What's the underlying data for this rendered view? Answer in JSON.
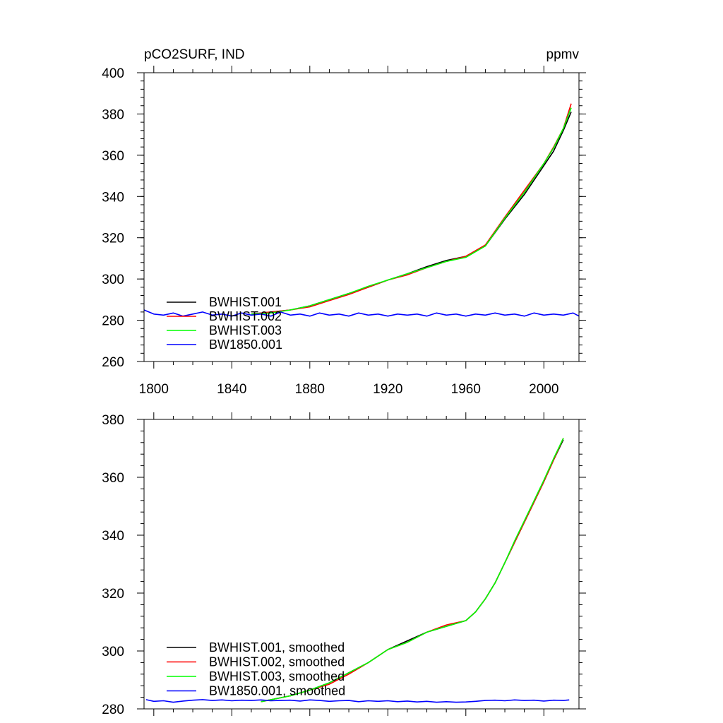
{
  "chart_data": [
    {
      "type": "line",
      "title_left": "pCO2SURF, IND",
      "title_right": "ppmv",
      "xlim": [
        1795,
        2018
      ],
      "ylim": [
        260,
        400
      ],
      "x_ticks": [
        1800,
        1840,
        1880,
        1920,
        1960,
        2000
      ],
      "x_tick_labels": [
        "1800",
        "1840",
        "1880",
        "1920",
        "1960",
        "2000"
      ],
      "y_ticks": [
        260,
        280,
        300,
        320,
        340,
        360,
        380,
        400
      ],
      "y_tick_labels": [
        "260",
        "280",
        "300",
        "320",
        "340",
        "360",
        "380",
        "400"
      ],
      "grid": false,
      "legend_position": "bottom-left",
      "series": [
        {
          "name": "BWHIST.001",
          "color": "#000000",
          "x": [
            1850,
            1860,
            1870,
            1880,
            1890,
            1900,
            1910,
            1920,
            1930,
            1940,
            1950,
            1960,
            1970,
            1980,
            1990,
            2000,
            2005,
            2010,
            2014
          ],
          "y": [
            283,
            284,
            285,
            287,
            290,
            293,
            296,
            299.5,
            302.5,
            306,
            309,
            311,
            316,
            329,
            341,
            355,
            362,
            372,
            381
          ]
        },
        {
          "name": "BWHIST.002",
          "color": "#ff0000",
          "x": [
            1850,
            1860,
            1870,
            1880,
            1890,
            1900,
            1910,
            1920,
            1930,
            1940,
            1950,
            1960,
            1970,
            1980,
            1990,
            2000,
            2005,
            2010,
            2014
          ],
          "y": [
            283,
            284,
            285,
            286.5,
            289.5,
            292.5,
            296,
            299.5,
            302,
            305.5,
            308.5,
            311,
            316.5,
            330,
            343,
            356,
            364,
            373,
            385
          ]
        },
        {
          "name": "BWHIST.003",
          "color": "#00ff00",
          "x": [
            1850,
            1860,
            1870,
            1880,
            1890,
            1900,
            1910,
            1920,
            1930,
            1940,
            1950,
            1960,
            1970,
            1980,
            1990,
            2000,
            2005,
            2010,
            2014
          ],
          "y": [
            283,
            283.5,
            285,
            287,
            290,
            293,
            296.5,
            299.5,
            302.5,
            305.5,
            308.5,
            310.5,
            316,
            329.5,
            342,
            356,
            363.5,
            373,
            383
          ]
        },
        {
          "name": "BW1850.001",
          "color": "#0000ff",
          "x": [
            1795,
            1800,
            1805,
            1810,
            1815,
            1820,
            1825,
            1830,
            1835,
            1840,
            1845,
            1850,
            1855,
            1860,
            1865,
            1870,
            1875,
            1880,
            1885,
            1890,
            1895,
            1900,
            1905,
            1910,
            1915,
            1920,
            1925,
            1930,
            1935,
            1940,
            1945,
            1950,
            1955,
            1960,
            1965,
            1970,
            1975,
            1980,
            1985,
            1990,
            1995,
            2000,
            2005,
            2010,
            2015,
            2018
          ],
          "y": [
            285,
            283,
            282.5,
            283.5,
            282,
            283,
            284,
            282.5,
            283,
            282,
            283.5,
            282.5,
            283,
            282,
            284,
            282.5,
            283,
            282,
            283.5,
            282.5,
            283,
            282,
            283.5,
            282.5,
            283,
            282,
            283,
            282.5,
            283,
            282,
            283.5,
            282.5,
            283,
            282,
            283,
            282.5,
            283.5,
            282.5,
            283,
            282,
            283.5,
            282.5,
            283,
            282.5,
            283.5,
            282
          ]
        }
      ]
    },
    {
      "type": "line",
      "xlim": [
        1795,
        2018
      ],
      "ylim": [
        280,
        380
      ],
      "y_ticks": [
        280,
        300,
        320,
        340,
        360,
        380
      ],
      "y_tick_labels": [
        "280",
        "300",
        "320",
        "340",
        "360",
        "380"
      ],
      "grid": false,
      "legend_position": "bottom-left",
      "series": [
        {
          "name": "BWHIST.001, smoothed",
          "color": "#000000",
          "x": [
            1855,
            1870,
            1880,
            1890,
            1900,
            1910,
            1920,
            1930,
            1940,
            1950,
            1960,
            1965,
            1970,
            1975,
            1980,
            1985,
            1990,
            1995,
            2000,
            2005,
            2010
          ],
          "y": [
            282.5,
            284.5,
            286.5,
            289,
            292.5,
            296,
            300.5,
            303.5,
            306.5,
            308.5,
            310.5,
            313.5,
            318,
            323.5,
            330.5,
            337.5,
            344.5,
            351.5,
            358.5,
            366,
            373
          ]
        },
        {
          "name": "BWHIST.002, smoothed",
          "color": "#ff0000",
          "x": [
            1855,
            1870,
            1880,
            1890,
            1900,
            1910,
            1920,
            1930,
            1940,
            1950,
            1960,
            1965,
            1970,
            1975,
            1980,
            1985,
            1990,
            1995,
            2000,
            2005,
            2010
          ],
          "y": [
            282.5,
            284.5,
            286.5,
            288.5,
            292,
            296,
            300.5,
            303,
            306.5,
            309,
            310.5,
            313.5,
            318,
            323.5,
            330.5,
            337.5,
            344.5,
            351.5,
            358.5,
            366,
            373.5
          ]
        },
        {
          "name": "BWHIST.003, smoothed",
          "color": "#00ff00",
          "x": [
            1855,
            1870,
            1880,
            1890,
            1900,
            1910,
            1920,
            1930,
            1940,
            1950,
            1960,
            1965,
            1970,
            1975,
            1980,
            1985,
            1990,
            1995,
            2000,
            2005,
            2010
          ],
          "y": [
            282.5,
            284.5,
            286.5,
            289,
            292.5,
            296,
            300.5,
            303,
            306.5,
            308.5,
            310.5,
            313.5,
            318,
            323.5,
            330.5,
            338,
            345,
            352,
            359,
            366.5,
            373.5
          ]
        },
        {
          "name": "BW1850.001, smoothed",
          "color": "#0000ff",
          "x": [
            1796,
            1800,
            1805,
            1810,
            1815,
            1820,
            1825,
            1830,
            1835,
            1840,
            1845,
            1850,
            1855,
            1860,
            1865,
            1870,
            1875,
            1880,
            1885,
            1890,
            1895,
            1900,
            1905,
            1910,
            1915,
            1920,
            1925,
            1930,
            1935,
            1940,
            1945,
            1950,
            1955,
            1960,
            1965,
            1970,
            1975,
            1980,
            1985,
            1990,
            1995,
            2000,
            2005,
            2010,
            2013
          ],
          "y": [
            283.2,
            282.6,
            282.8,
            282.3,
            282.7,
            283.0,
            283.2,
            282.9,
            283.1,
            282.8,
            283.0,
            282.9,
            283.1,
            282.8,
            282.9,
            283.0,
            282.7,
            283.1,
            282.9,
            282.6,
            282.8,
            282.9,
            282.5,
            282.8,
            282.6,
            282.8,
            282.5,
            282.7,
            282.4,
            282.6,
            282.3,
            282.5,
            282.3,
            282.4,
            282.6,
            282.9,
            283.0,
            282.8,
            283.1,
            282.9,
            283.0,
            282.7,
            283.0,
            282.9,
            283.1
          ]
        }
      ]
    }
  ]
}
